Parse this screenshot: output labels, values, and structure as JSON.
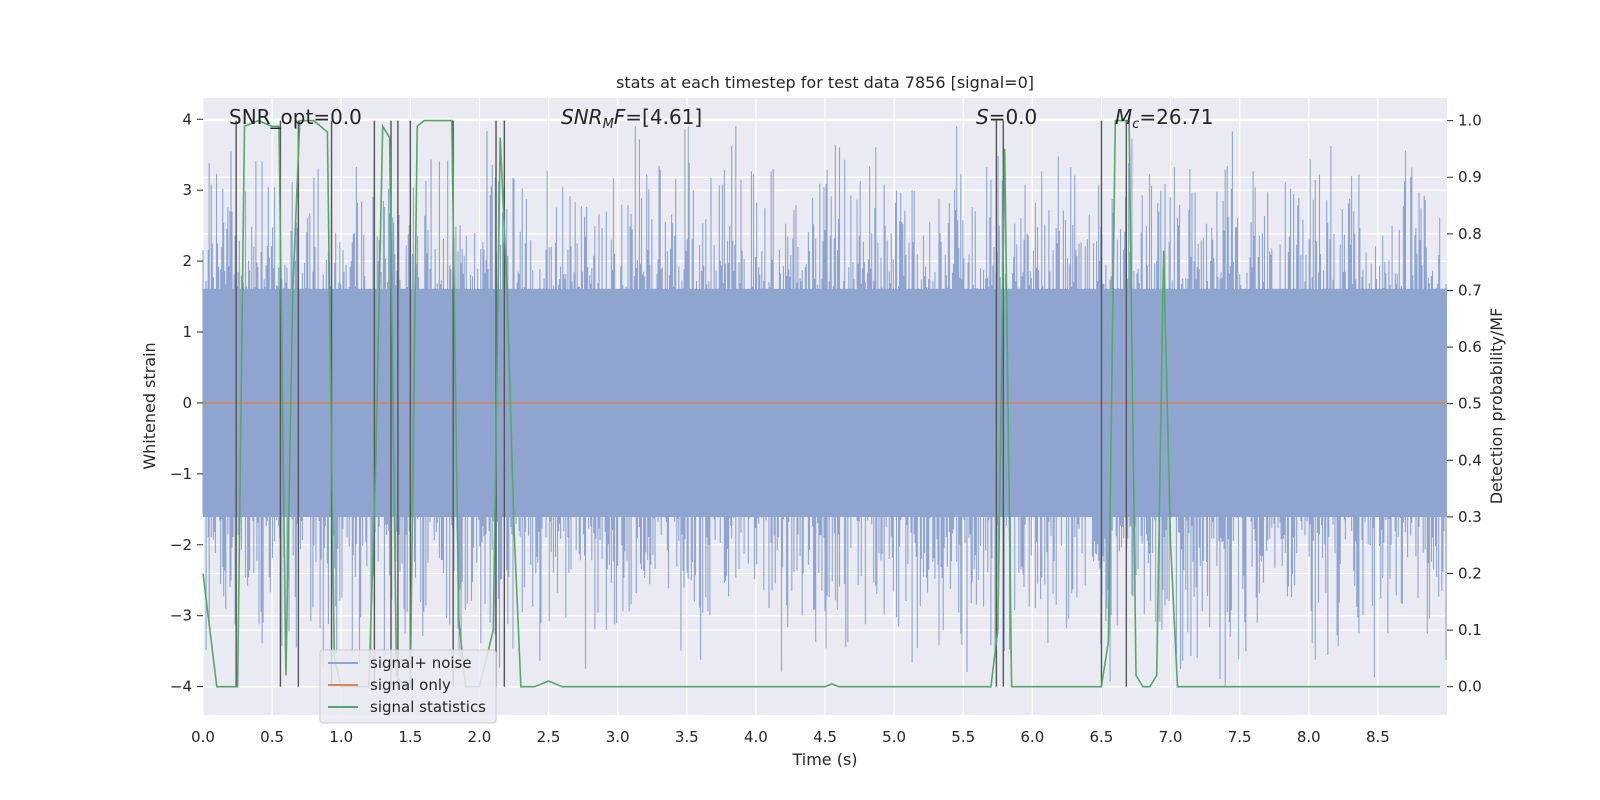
{
  "chart_data": {
    "type": "line",
    "title": "stats at each timestep for test data 7856 [signal=0]",
    "xlabel": "Time (s)",
    "ylabel_left": "Whitened strain",
    "ylabel_right": "Detection probability/MF",
    "xlim": [
      0.0,
      9.0
    ],
    "ylim_left": [
      -4.4,
      4.3
    ],
    "ylim_right": [
      -0.05,
      1.04
    ],
    "x_ticks": [
      0.0,
      0.5,
      1.0,
      1.5,
      2.0,
      2.5,
      3.0,
      3.5,
      4.0,
      4.5,
      5.0,
      5.5,
      6.0,
      6.5,
      7.0,
      7.5,
      8.0,
      8.5
    ],
    "x_tick_labels": [
      "0.0",
      "0.5",
      "1.0",
      "1.5",
      "2.0",
      "2.5",
      "3.0",
      "3.5",
      "4.0",
      "4.5",
      "5.0",
      "5.5",
      "6.0",
      "6.5",
      "7.0",
      "7.5",
      "8.0",
      "8.5"
    ],
    "y_left_ticks": [
      4,
      3,
      2,
      1,
      0,
      -1,
      -2,
      -3,
      -4
    ],
    "y_left_tick_labels": [
      "4",
      "3",
      "2",
      "1",
      "0",
      "−1",
      "−2",
      "−3",
      "−4"
    ],
    "y_right_ticks": [
      1.0,
      0.9,
      0.8,
      0.7,
      0.6,
      0.5,
      0.4,
      0.3,
      0.2,
      0.1,
      0.0
    ],
    "y_right_tick_labels": [
      "1.0",
      "0.9",
      "0.8",
      "0.7",
      "0.6",
      "0.5",
      "0.4",
      "0.3",
      "0.2",
      "0.1",
      "0.0"
    ],
    "annotations": {
      "snr_opt": "SNR_opt=0.0",
      "snr_mf_sym": "SNR",
      "snr_mf_sub": "M",
      "snr_mf_rest": "F=[4.61]",
      "s_sym": "S",
      "s_rest": "=0.0",
      "mc_sym": "M",
      "mc_sub": "c",
      "mc_rest": "=26.71"
    },
    "legend": {
      "location": "lower-left",
      "entries": [
        "signal+ noise",
        "signal only",
        "signal statistics"
      ]
    },
    "colors": {
      "noise": "#8fa5cf",
      "signal_only": "#dd8452",
      "statistics": "#55a868",
      "vlines": "#555555",
      "background": "#eaeaf2",
      "grid": "#ffffff"
    },
    "series": [
      {
        "name": "signal statistics",
        "x": [
          0.0,
          0.05,
          0.1,
          0.25,
          0.3,
          0.4,
          0.5,
          0.55,
          0.6,
          0.65,
          0.7,
          0.75,
          0.8,
          0.9,
          0.95,
          1.0,
          1.05,
          1.1,
          1.2,
          1.25,
          1.3,
          1.35,
          1.4,
          1.45,
          1.5,
          1.55,
          1.6,
          1.7,
          1.8,
          1.85,
          1.9,
          2.0,
          2.1,
          2.15,
          2.2,
          2.25,
          2.3,
          2.4,
          2.5,
          2.6,
          3.0,
          3.5,
          4.0,
          4.5,
          4.55,
          4.6,
          5.0,
          5.5,
          5.7,
          5.75,
          5.8,
          5.85,
          5.9,
          6.0,
          6.5,
          6.55,
          6.6,
          6.65,
          6.7,
          6.75,
          6.8,
          6.85,
          6.9,
          6.95,
          7.0,
          7.05,
          7.5,
          8.0,
          8.5,
          8.95
        ],
        "values": [
          0.2,
          0.1,
          0.0,
          0.0,
          0.99,
          1.0,
          0.99,
          0.99,
          0.02,
          0.7,
          1.0,
          1.0,
          1.0,
          0.98,
          0.05,
          0.0,
          0.0,
          0.0,
          0.0,
          0.4,
          0.99,
          0.97,
          0.02,
          0.0,
          0.0,
          0.99,
          1.0,
          1.0,
          1.0,
          0.12,
          0.0,
          0.0,
          0.1,
          0.97,
          0.7,
          0.28,
          0.0,
          0.0,
          0.01,
          0.0,
          0.0,
          0.0,
          0.0,
          0.0,
          0.005,
          0.0,
          0.0,
          0.0,
          0.0,
          0.1,
          0.95,
          0.0,
          0.0,
          0.0,
          0.0,
          0.08,
          1.0,
          1.0,
          1.0,
          0.02,
          0.0,
          0.0,
          0.02,
          0.77,
          0.25,
          0.0,
          0.0,
          0.0,
          0.0,
          0.0
        ]
      },
      {
        "name": "signal only",
        "x": [
          0.0,
          9.0
        ],
        "values": [
          0.0,
          0.0
        ]
      },
      {
        "name": "signal+ noise",
        "description_of_values": "dense whitened-strain noise roughly within -2.5 to 2.5 with spikes to about ±4",
        "x": [
          0.0,
          9.0
        ],
        "envelope_upper": [
          2.3,
          2.3
        ],
        "envelope_lower": [
          -2.3,
          -2.3
        ]
      }
    ],
    "vertical_lines": [
      0.24,
      0.56,
      0.69,
      0.93,
      1.24,
      1.36,
      1.41,
      1.5,
      1.81,
      2.12,
      2.18,
      5.74,
      5.79,
      6.5,
      6.68
    ]
  }
}
